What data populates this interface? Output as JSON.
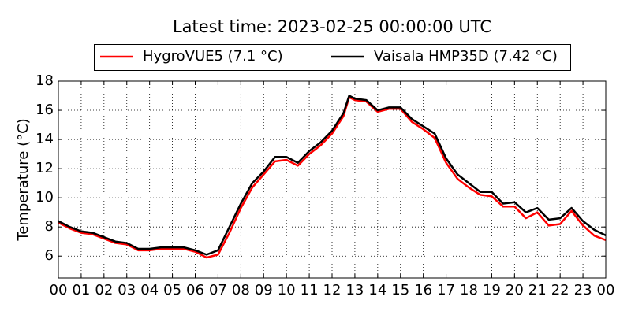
{
  "chart_data": {
    "type": "line",
    "title": "Latest time: 2023-02-25 00:00:00 UTC",
    "y_label": "Temperature (°C)",
    "x": [
      0,
      0.5,
      1,
      1.5,
      2,
      2.5,
      3,
      3.5,
      4,
      4.5,
      5,
      5.5,
      6,
      6.5,
      7,
      7.5,
      8,
      8.5,
      9,
      9.5,
      10,
      10.5,
      11,
      11.5,
      12,
      12.25,
      12.5,
      12.75,
      13,
      13.5,
      14,
      14.5,
      15,
      15.5,
      16,
      16.5,
      17,
      17.5,
      18,
      18.5,
      19,
      19.5,
      20,
      20.5,
      21,
      21.5,
      22,
      22.5,
      23,
      23.5,
      24
    ],
    "series": [
      {
        "name": "HygroVUE5 (7.1 °C)",
        "color": "#ff0000",
        "values": [
          8.3,
          7.9,
          7.6,
          7.5,
          7.2,
          6.9,
          6.8,
          6.4,
          6.4,
          6.5,
          6.5,
          6.5,
          6.3,
          5.9,
          6.1,
          7.6,
          9.3,
          10.7,
          11.6,
          12.5,
          12.6,
          12.2,
          13.0,
          13.6,
          14.4,
          15.0,
          15.6,
          16.9,
          16.7,
          16.6,
          15.9,
          16.1,
          16.1,
          15.2,
          14.7,
          14.1,
          12.4,
          11.3,
          10.7,
          10.2,
          10.1,
          9.4,
          9.4,
          8.6,
          9.0,
          8.1,
          8.2,
          9.1,
          8.1,
          7.4,
          7.1
        ]
      },
      {
        "name": "Vaisala HMP35D (7.42 °C)",
        "color": "#000000",
        "values": [
          8.4,
          8.0,
          7.7,
          7.6,
          7.3,
          7.0,
          6.9,
          6.5,
          6.5,
          6.6,
          6.6,
          6.6,
          6.4,
          6.1,
          6.4,
          8.0,
          9.6,
          11.0,
          11.8,
          12.8,
          12.8,
          12.4,
          13.2,
          13.8,
          14.6,
          15.2,
          15.8,
          17.0,
          16.8,
          16.7,
          16.0,
          16.2,
          16.2,
          15.4,
          14.9,
          14.4,
          12.7,
          11.6,
          11.0,
          10.4,
          10.4,
          9.6,
          9.7,
          9.0,
          9.3,
          8.5,
          8.6,
          9.3,
          8.4,
          7.8,
          7.42
        ]
      }
    ],
    "xlim": [
      0,
      24
    ],
    "xticks": [
      {
        "value": 0,
        "label": "00"
      },
      {
        "value": 1,
        "label": "01"
      },
      {
        "value": 2,
        "label": "02"
      },
      {
        "value": 3,
        "label": "03"
      },
      {
        "value": 4,
        "label": "04"
      },
      {
        "value": 5,
        "label": "05"
      },
      {
        "value": 6,
        "label": "06"
      },
      {
        "value": 7,
        "label": "07"
      },
      {
        "value": 8,
        "label": "08"
      },
      {
        "value": 9,
        "label": "09"
      },
      10,
      11,
      12,
      13,
      14,
      15,
      16,
      17,
      18,
      19,
      20,
      21,
      22,
      23,
      {
        "value": 24,
        "label": "00"
      }
    ],
    "ylim": [
      4.5,
      18
    ],
    "yticks": [
      6,
      8,
      10,
      12,
      14,
      16,
      18
    ],
    "grid": true
  }
}
